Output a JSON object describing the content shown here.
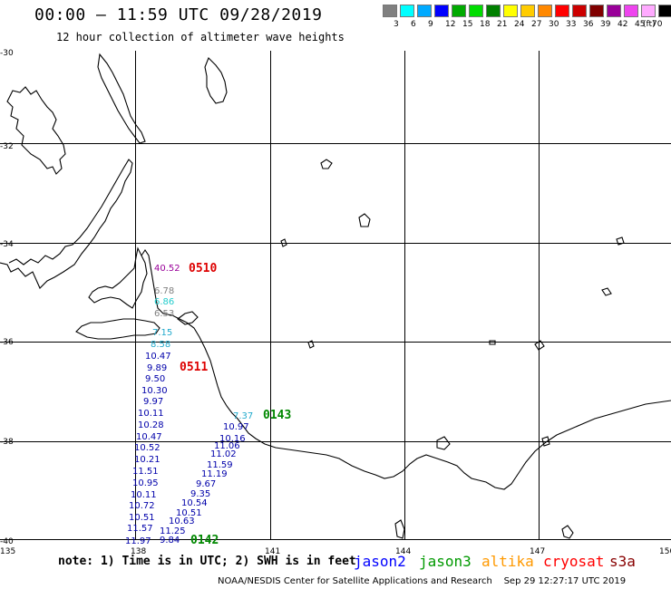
{
  "header": {
    "title": "00:00 – 11:59 UTC 09/28/2019",
    "subtitle": "12 hour collection of altimeter wave heights"
  },
  "color_scale": {
    "colors": [
      "#808080",
      "#00ffff",
      "#00aaff",
      "#0000ff",
      "#00aa00",
      "#00dd00",
      "#008000",
      "#ffff00",
      "#ffcc00",
      "#ff8800",
      "#ff0000",
      "#cc0000",
      "#800000",
      "#990099",
      "#ee44ee",
      "#ffaaff",
      "#000000"
    ],
    "labels": [
      "3",
      "6",
      "9",
      "12",
      "15",
      "18",
      "21",
      "24",
      "27",
      "30",
      "33",
      "36",
      "39",
      "42",
      "45",
      "70",
      "(ft)"
    ]
  },
  "axes": {
    "lon_labels": [
      "135",
      "138",
      "141",
      "144",
      "147",
      "150"
    ],
    "lat_labels": [
      "-30",
      "-32",
      "-34",
      "-36",
      "-38",
      "-40"
    ]
  },
  "passes": [
    {
      "label": "0510",
      "color": "#dd0000"
    },
    {
      "label": "0511",
      "color": "#dd0000"
    },
    {
      "label": "0143",
      "color": "#008800"
    },
    {
      "label": "0142",
      "color": "#008800"
    }
  ],
  "observations": [
    {
      "text": "40.52",
      "color": "#990099"
    },
    {
      "text": "6.78",
      "color": "#808080"
    },
    {
      "text": "6.86",
      "color": "#22cccc"
    },
    {
      "text": "6.53",
      "color": "#808080"
    },
    {
      "text": "7.15",
      "color": "#22aacc"
    },
    {
      "text": "8.58",
      "color": "#22aacc"
    },
    {
      "text": "10.47",
      "color": "#0000aa"
    },
    {
      "text": "9.89",
      "color": "#0000aa"
    },
    {
      "text": "9.50",
      "color": "#0000aa"
    },
    {
      "text": "10.30",
      "color": "#0000aa"
    },
    {
      "text": "9.97",
      "color": "#0000aa"
    },
    {
      "text": "10.11",
      "color": "#0000aa"
    },
    {
      "text": "10.28",
      "color": "#0000aa"
    },
    {
      "text": "10.47",
      "color": "#0000aa"
    },
    {
      "text": "10.52",
      "color": "#0000aa"
    },
    {
      "text": "10.21",
      "color": "#0000aa"
    },
    {
      "text": "11.51",
      "color": "#0000aa"
    },
    {
      "text": "10.95",
      "color": "#0000aa"
    },
    {
      "text": "10.11",
      "color": "#0000aa"
    },
    {
      "text": "10.72",
      "color": "#0000aa"
    },
    {
      "text": "10.51",
      "color": "#0000aa"
    },
    {
      "text": "11.57",
      "color": "#0000aa"
    },
    {
      "text": "11.97",
      "color": "#0000aa"
    },
    {
      "text": "7.37",
      "color": "#22aacc"
    },
    {
      "text": "10.97",
      "color": "#0000aa"
    },
    {
      "text": "10.16",
      "color": "#0000aa"
    },
    {
      "text": "11.06",
      "color": "#0000aa"
    },
    {
      "text": "11.02",
      "color": "#0000aa"
    },
    {
      "text": "11.59",
      "color": "#0000aa"
    },
    {
      "text": "11.19",
      "color": "#0000aa"
    },
    {
      "text": "9.67",
      "color": "#0000aa"
    },
    {
      "text": "9.35",
      "color": "#0000aa"
    },
    {
      "text": "10.54",
      "color": "#0000aa"
    },
    {
      "text": "10.51",
      "color": "#0000aa"
    },
    {
      "text": "10.63",
      "color": "#0000aa"
    },
    {
      "text": "11.25",
      "color": "#0000aa"
    },
    {
      "text": "9.84",
      "color": "#0000aa"
    }
  ],
  "note": "note: 1) Time is in UTC; 2) SWH is in feet",
  "satellites": [
    {
      "name": "jason2",
      "color": "#0000ff"
    },
    {
      "name": "jason3",
      "color": "#009900"
    },
    {
      "name": "altika",
      "color": "#ff9900"
    },
    {
      "name": "cryosat",
      "color": "#ff0000"
    },
    {
      "name": "s3a",
      "color": "#880000"
    }
  ],
  "footer": {
    "left": "NOAA/NESDIS Center for Satellite Applications and Research",
    "right": "Sep 29 12:27:17 UTC 2019"
  }
}
